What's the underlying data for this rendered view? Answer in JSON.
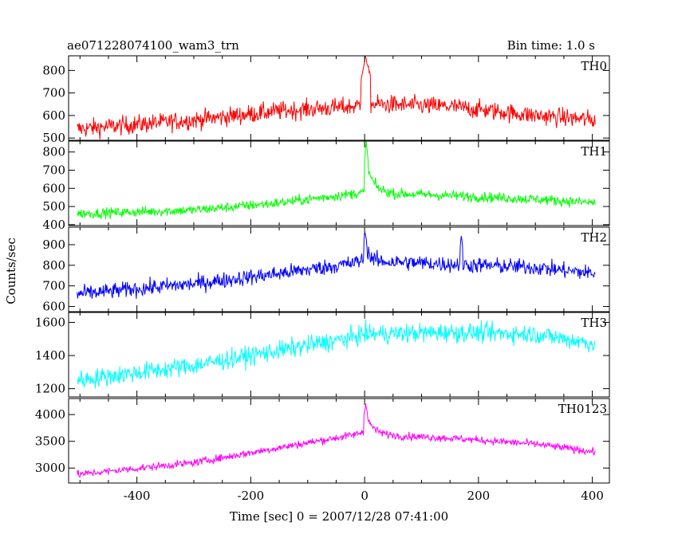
{
  "header": {
    "left_title": "ae071228074100_wam3_trn",
    "right_title": "Bin time: 1.0 s"
  },
  "axes": {
    "ylabel": "Counts/sec",
    "xlabel": "Time [sec] 0 = 2007/12/28 07:41:00"
  },
  "chart_data": {
    "type": "line",
    "xlim": [
      -520,
      430
    ],
    "xticks": [
      -400,
      -200,
      0,
      200,
      400
    ],
    "bin_time_s": 1.0,
    "grid": false,
    "panels": [
      {
        "name": "TH0",
        "color": "#ff0000",
        "ylim": [
          490,
          865
        ],
        "yticks": [
          500,
          600,
          700,
          800
        ],
        "trend": [
          [
            -505,
            540
          ],
          [
            -300,
            580
          ],
          [
            -150,
            620
          ],
          [
            -20,
            640
          ],
          [
            0,
            650
          ],
          [
            20,
            650
          ],
          [
            150,
            640
          ],
          [
            300,
            600
          ],
          [
            405,
            580
          ]
        ],
        "noise": 32,
        "features": [
          {
            "x": 2,
            "peak": 865,
            "width": 8
          }
        ]
      },
      {
        "name": "TH1",
        "color": "#00ff00",
        "ylim": [
          395,
          860
        ],
        "yticks": [
          400,
          500,
          600,
          700,
          800
        ],
        "trend": [
          [
            -505,
            460
          ],
          [
            -300,
            480
          ],
          [
            -150,
            520
          ],
          [
            -20,
            570
          ],
          [
            0,
            580
          ],
          [
            20,
            575
          ],
          [
            150,
            560
          ],
          [
            300,
            540
          ],
          [
            405,
            520
          ]
        ],
        "noise": 22,
        "features": [
          {
            "x": 3,
            "peak": 860,
            "width": 3,
            "decay": 12
          }
        ]
      },
      {
        "name": "TH2",
        "color": "#0000ff",
        "ylim": [
          575,
          985
        ],
        "yticks": [
          600,
          700,
          800,
          900
        ],
        "trend": [
          [
            -505,
            660
          ],
          [
            -300,
            710
          ],
          [
            -150,
            760
          ],
          [
            -20,
            810
          ],
          [
            0,
            830
          ],
          [
            20,
            820
          ],
          [
            150,
            805
          ],
          [
            300,
            790
          ],
          [
            405,
            760
          ]
        ],
        "noise": 30,
        "features": [
          {
            "x": 1,
            "peak": 970,
            "width": 2,
            "decay": 6
          },
          {
            "x": 170,
            "peak": 940,
            "width": 2
          }
        ]
      },
      {
        "name": "TH3",
        "color": "#00ffff",
        "ylim": [
          1150,
          1660
        ],
        "yticks": [
          1200,
          1400,
          1600
        ],
        "trend": [
          [
            -505,
            1250
          ],
          [
            -300,
            1340
          ],
          [
            -150,
            1430
          ],
          [
            -20,
            1510
          ],
          [
            0,
            1530
          ],
          [
            20,
            1530
          ],
          [
            150,
            1540
          ],
          [
            300,
            1530
          ],
          [
            405,
            1470
          ]
        ],
        "noise": 45,
        "features": []
      },
      {
        "name": "TH0123",
        "color": "#ff00ff",
        "ylim": [
          2720,
          4300
        ],
        "yticks": [
          3000,
          3500,
          4000
        ],
        "trend": [
          [
            -505,
            2880
          ],
          [
            -300,
            3100
          ],
          [
            -150,
            3380
          ],
          [
            -20,
            3620
          ],
          [
            0,
            3680
          ],
          [
            20,
            3620
          ],
          [
            150,
            3560
          ],
          [
            300,
            3450
          ],
          [
            405,
            3300
          ]
        ],
        "noise": 55,
        "features": [
          {
            "x": 2,
            "peak": 4200,
            "width": 3,
            "decay": 14
          }
        ]
      }
    ]
  }
}
